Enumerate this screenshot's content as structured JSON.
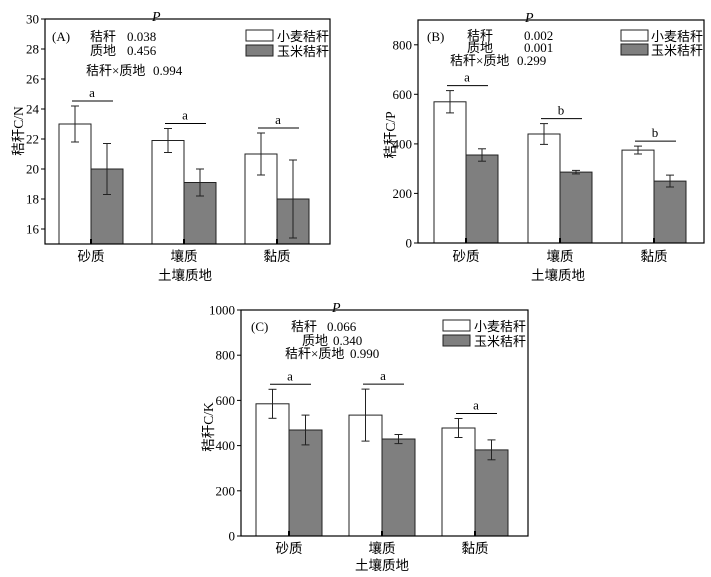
{
  "chart_data": [
    {
      "type": "bar",
      "panel": "(A)",
      "categories": [
        "砂质",
        "壤质",
        "黏质"
      ],
      "xlabel": "土壤质地",
      "ylabel": "秸秆C/N",
      "ylim": [
        15,
        30
      ],
      "yticks": [
        16,
        18,
        20,
        22,
        24,
        26,
        28,
        30
      ],
      "grid": false,
      "legend_position": "upper-right",
      "series": [
        {
          "name": "小麦秸秆",
          "color": "#ffffff",
          "values": [
            23.0,
            21.9,
            21.0
          ],
          "errors": [
            1.2,
            0.8,
            1.4
          ]
        },
        {
          "name": "玉米秸秆",
          "color": "#7f7f7f",
          "values": [
            20.0,
            19.1,
            18.0
          ],
          "errors": [
            1.7,
            0.9,
            2.6
          ]
        }
      ],
      "significance": [
        "a",
        "a",
        "a"
      ],
      "stats": {
        "header": "P",
        "rows": [
          {
            "label": "秸秆",
            "value": "0.038"
          },
          {
            "label": "质地",
            "value": "0.456"
          },
          {
            "label": "秸秆×质地",
            "value": "0.994"
          }
        ]
      }
    },
    {
      "type": "bar",
      "panel": "(B)",
      "categories": [
        "砂质",
        "壤质",
        "黏质"
      ],
      "xlabel": "土壤质地",
      "ylabel": "秸秆C/P",
      "ylim": [
        0,
        900
      ],
      "yticks": [
        0,
        200,
        400,
        600,
        800
      ],
      "grid": false,
      "legend_position": "upper-right",
      "series": [
        {
          "name": "小麦秸秆",
          "color": "#ffffff",
          "values": [
            570,
            440,
            375
          ],
          "errors": [
            45,
            42,
            16
          ]
        },
        {
          "name": "玉米秸秆",
          "color": "#7f7f7f",
          "values": [
            355,
            286,
            250
          ],
          "errors": [
            25,
            7,
            24
          ]
        }
      ],
      "significance": [
        "a",
        "b",
        "b"
      ],
      "stats": {
        "header": "P",
        "rows": [
          {
            "label": "秸秆",
            "value": "0.002"
          },
          {
            "label": "质地",
            "value": "0.001"
          },
          {
            "label": "秸秆×质地",
            "value": "0.299"
          }
        ]
      }
    },
    {
      "type": "bar",
      "panel": "(C)",
      "categories": [
        "砂质",
        "壤质",
        "黏质"
      ],
      "xlabel": "土壤质地",
      "ylabel": "秸秆C/K",
      "ylim": [
        0,
        1000
      ],
      "yticks": [
        0,
        200,
        400,
        600,
        800,
        1000
      ],
      "grid": false,
      "legend_position": "upper-right",
      "series": [
        {
          "name": "小麦秸秆",
          "color": "#ffffff",
          "values": [
            585,
            535,
            478
          ],
          "errors": [
            64,
            115,
            42
          ]
        },
        {
          "name": "玉米秸秆",
          "color": "#7f7f7f",
          "values": [
            469,
            429,
            381
          ],
          "errors": [
            66,
            20,
            44
          ]
        }
      ],
      "significance": [
        "a",
        "a",
        "a"
      ],
      "stats": {
        "header": "P",
        "rows": [
          {
            "label": "秸秆",
            "value": "0.066"
          },
          {
            "label": "质地",
            "value": "0.340"
          },
          {
            "label": "秸秆×质地",
            "value": "0.990"
          }
        ]
      }
    }
  ]
}
